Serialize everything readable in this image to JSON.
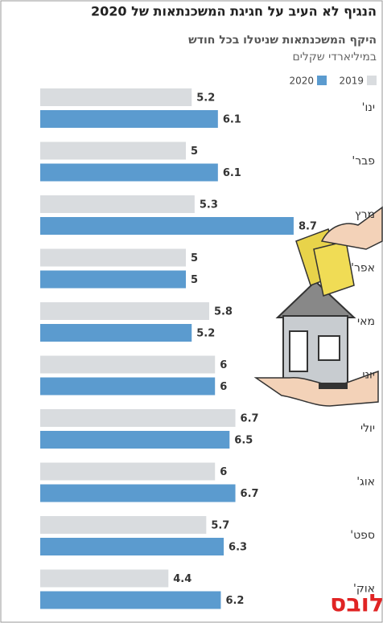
{
  "chart_data": {
    "type": "bar",
    "orientation": "horizontal",
    "title": "הנגיף לא העיב על חגיגת המשכנתאות של 2020",
    "subtitle": "היקף המשכנתאות שניטלו בכל חודש",
    "unit": "במיליארדי שקלים",
    "categories": [
      "ינו'",
      "פבר'",
      "מרץ",
      "אפר'",
      "מאי",
      "יוני",
      "יולי",
      "אוג'",
      "ספט'",
      "אוק'"
    ],
    "series": [
      {
        "name": "2019",
        "color": "#d9dcdf",
        "values": [
          5.2,
          5,
          5.3,
          5,
          5.8,
          6,
          6.7,
          6,
          5.7,
          4.4
        ]
      },
      {
        "name": "2020",
        "color": "#5b9bcf",
        "values": [
          6.1,
          6.1,
          8.7,
          5,
          5.2,
          6,
          6.5,
          6.7,
          6.3,
          6.2
        ]
      }
    ],
    "logo": "גלובס"
  }
}
